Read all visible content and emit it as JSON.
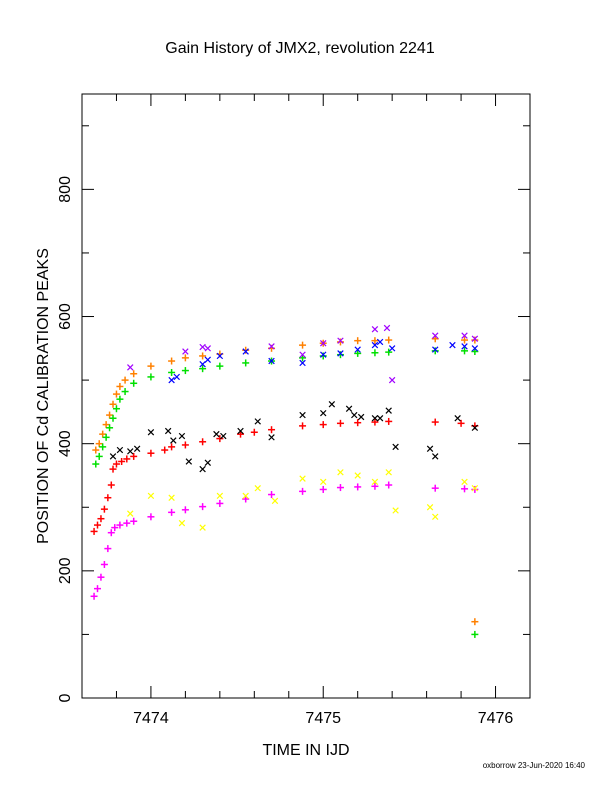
{
  "chart_data": {
    "type": "scatter",
    "title": "Gain History of JMX2, revolution 2241",
    "xlabel": "TIME IN IJD",
    "ylabel": "POSITION OF Cd CALIBRATION PEAKS",
    "xlim": [
      7473.6,
      7476.2
    ],
    "ylim": [
      0,
      950
    ],
    "x_ticks": [
      7474,
      7475,
      7476
    ],
    "x_tick_labels": [
      "7474",
      "7475",
      "7476"
    ],
    "x_minor_step": 0.2,
    "y_ticks": [
      0,
      200,
      400,
      600,
      800
    ],
    "y_tick_labels": [
      "0",
      "200",
      "400",
      "600",
      "800"
    ],
    "y_minor_step": 100,
    "grid": false,
    "footer": "oxborrow 23-Jun-2020 16:40",
    "series": [
      {
        "color": "#ff8000",
        "marker": "plus",
        "x": [
          7473.68,
          7473.7,
          7473.72,
          7473.74,
          7473.76,
          7473.78,
          7473.8,
          7473.82,
          7473.85,
          7473.9,
          7474.0,
          7474.12,
          7474.2,
          7474.3,
          7474.4,
          7474.55,
          7474.7,
          7474.88,
          7475.0,
          7475.1,
          7475.2,
          7475.3,
          7475.38,
          7475.65,
          7475.82,
          7475.88,
          7475.88
        ],
        "y": [
          390,
          400,
          415,
          430,
          445,
          462,
          478,
          490,
          500,
          510,
          522,
          530,
          535,
          538,
          541,
          547,
          550,
          555,
          558,
          560,
          562,
          562,
          563,
          565,
          563,
          563,
          120
        ]
      },
      {
        "color": "#00e000",
        "marker": "plus",
        "x": [
          7473.68,
          7473.7,
          7473.72,
          7473.74,
          7473.76,
          7473.78,
          7473.8,
          7473.82,
          7473.85,
          7473.9,
          7474.0,
          7474.12,
          7474.2,
          7474.3,
          7474.4,
          7474.55,
          7474.7,
          7474.88,
          7475.0,
          7475.1,
          7475.2,
          7475.3,
          7475.38,
          7475.65,
          7475.82,
          7475.88,
          7475.88
        ],
        "y": [
          368,
          380,
          395,
          410,
          425,
          440,
          455,
          470,
          482,
          495,
          505,
          512,
          515,
          518,
          522,
          527,
          530,
          535,
          538,
          540,
          542,
          543,
          544,
          546,
          546,
          545,
          100
        ]
      },
      {
        "color": "#0000ff",
        "marker": "cross",
        "x": [
          7474.12,
          7474.15,
          7474.3,
          7474.33,
          7474.4,
          7474.55,
          7474.7,
          7474.88,
          7475.0,
          7475.1,
          7475.2,
          7475.3,
          7475.33,
          7475.4,
          7475.65,
          7475.75,
          7475.82,
          7475.88
        ],
        "y": [
          500,
          505,
          525,
          532,
          538,
          545,
          530,
          527,
          540,
          542,
          548,
          555,
          560,
          550,
          548,
          555,
          553,
          550
        ]
      },
      {
        "color": "#a000ff",
        "marker": "cross",
        "x": [
          7473.88,
          7474.2,
          7474.3,
          7474.33,
          7474.7,
          7474.88,
          7475.0,
          7475.1,
          7475.3,
          7475.37,
          7475.4,
          7475.65,
          7475.82,
          7475.88
        ],
        "y": [
          520,
          545,
          552,
          550,
          553,
          540,
          558,
          562,
          580,
          582,
          500,
          570,
          570,
          565
        ]
      },
      {
        "color": "#ff0000",
        "marker": "plus",
        "x": [
          7473.67,
          7473.69,
          7473.71,
          7473.73,
          7473.75,
          7473.77,
          7473.78,
          7473.8,
          7473.83,
          7473.86,
          7473.9,
          7474.0,
          7474.08,
          7474.12,
          7474.2,
          7474.3,
          7474.4,
          7474.52,
          7474.6,
          7474.7,
          7474.88,
          7475.0,
          7475.1,
          7475.2,
          7475.3,
          7475.38,
          7475.65,
          7475.8,
          7475.88
        ],
        "y": [
          262,
          272,
          282,
          297,
          315,
          335,
          360,
          368,
          372,
          376,
          380,
          385,
          390,
          395,
          398,
          403,
          408,
          415,
          418,
          422,
          428,
          430,
          432,
          433,
          434,
          435,
          434,
          432,
          428
        ]
      },
      {
        "color": "#000000",
        "marker": "cross",
        "x": [
          7473.78,
          7473.82,
          7473.88,
          7473.92,
          7474.0,
          7474.1,
          7474.13,
          7474.18,
          7474.22,
          7474.3,
          7474.33,
          7474.38,
          7474.42,
          7474.52,
          7474.62,
          7474.7,
          7474.88,
          7475.0,
          7475.05,
          7475.15,
          7475.18,
          7475.22,
          7475.3,
          7475.33,
          7475.38,
          7475.42,
          7475.62,
          7475.65,
          7475.78,
          7475.88
        ],
        "y": [
          380,
          390,
          388,
          392,
          418,
          420,
          405,
          412,
          372,
          360,
          370,
          415,
          412,
          420,
          435,
          410,
          445,
          448,
          462,
          455,
          445,
          442,
          440,
          440,
          452,
          395,
          392,
          380,
          440,
          425
        ]
      },
      {
        "color": "#ff00ff",
        "marker": "plus",
        "x": [
          7473.67,
          7473.69,
          7473.71,
          7473.73,
          7473.75,
          7473.77,
          7473.79,
          7473.82,
          7473.86,
          7473.9,
          7474.0,
          7474.12,
          7474.2,
          7474.3,
          7474.4,
          7474.55,
          7474.7,
          7474.88,
          7475.0,
          7475.1,
          7475.2,
          7475.3,
          7475.38,
          7475.65,
          7475.82,
          7475.88
        ],
        "y": [
          160,
          172,
          190,
          210,
          235,
          260,
          268,
          272,
          275,
          278,
          285,
          292,
          296,
          301,
          306,
          313,
          320,
          325,
          328,
          331,
          332,
          333,
          335,
          330,
          329,
          328
        ]
      },
      {
        "color": "#ffff00",
        "marker": "cross",
        "x": [
          7473.88,
          7474.0,
          7474.12,
          7474.18,
          7474.3,
          7474.4,
          7474.55,
          7474.62,
          7474.72,
          7474.88,
          7475.0,
          7475.1,
          7475.2,
          7475.3,
          7475.38,
          7475.42,
          7475.62,
          7475.65,
          7475.82,
          7475.88
        ],
        "y": [
          290,
          318,
          315,
          275,
          268,
          318,
          318,
          330,
          310,
          345,
          340,
          355,
          350,
          340,
          355,
          295,
          300,
          285,
          340,
          330
        ]
      }
    ]
  }
}
